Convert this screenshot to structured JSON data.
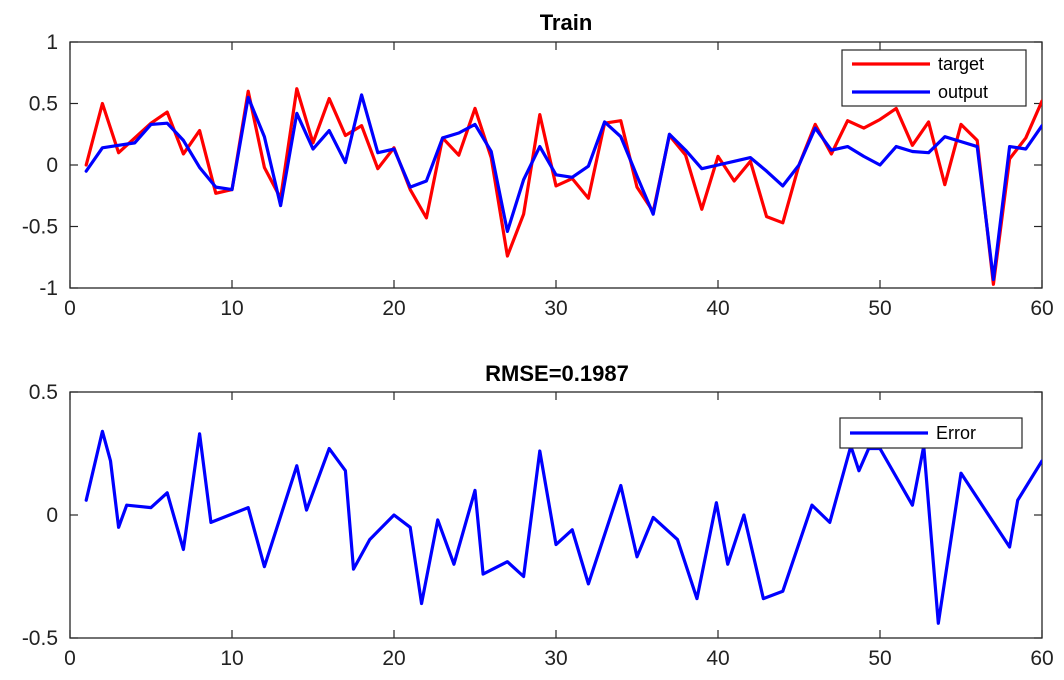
{
  "chart_data": [
    {
      "type": "line",
      "title": "Train",
      "xlabel": "",
      "ylabel": "",
      "xlim": [
        0,
        60
      ],
      "ylim": [
        -1,
        1
      ],
      "xticks": [
        0,
        10,
        20,
        30,
        40,
        50,
        60
      ],
      "yticks": [
        -1,
        -0.5,
        0,
        0.5,
        1
      ],
      "grid": false,
      "legend_position": "top-right",
      "series": [
        {
          "name": "target",
          "color": "#ff0000",
          "x": [
            1,
            2,
            3,
            4,
            5,
            6,
            7,
            8,
            9,
            10,
            11,
            12,
            13,
            14,
            15,
            16,
            17,
            18,
            19,
            20,
            21,
            22,
            23,
            24,
            25,
            26,
            27,
            28,
            29,
            30,
            31,
            32,
            33,
            34,
            35,
            36,
            37,
            38,
            39,
            40,
            41,
            42,
            43,
            44,
            45,
            46,
            47,
            48,
            49,
            50,
            51,
            52,
            53,
            54,
            55,
            56,
            57,
            58,
            59,
            60
          ],
          "values": [
            0.0,
            0.5,
            0.1,
            0.22,
            0.34,
            0.43,
            0.09,
            0.28,
            -0.23,
            -0.2,
            0.6,
            -0.02,
            -0.27,
            0.62,
            0.18,
            0.54,
            0.24,
            0.32,
            -0.03,
            0.14,
            -0.2,
            -0.43,
            0.22,
            0.08,
            0.46,
            0.06,
            -0.74,
            -0.4,
            0.41,
            -0.17,
            -0.11,
            -0.27,
            0.34,
            0.36,
            -0.18,
            -0.38,
            0.24,
            0.08,
            -0.36,
            0.07,
            -0.13,
            0.03,
            -0.42,
            -0.47,
            0.0,
            0.33,
            0.09,
            0.36,
            0.3,
            0.37,
            0.46,
            0.16,
            0.35,
            -0.16,
            0.33,
            0.2,
            -0.97,
            0.05,
            0.22,
            0.52
          ]
        },
        {
          "name": "output",
          "color": "#0000ff",
          "x": [
            1,
            2,
            3,
            4,
            5,
            6,
            7,
            8,
            9,
            10,
            11,
            12,
            13,
            14,
            15,
            16,
            17,
            18,
            19,
            20,
            21,
            22,
            23,
            24,
            25,
            26,
            27,
            28,
            29,
            30,
            31,
            32,
            33,
            34,
            35,
            36,
            37,
            38,
            39,
            40,
            41,
            42,
            43,
            44,
            45,
            46,
            47,
            48,
            49,
            50,
            51,
            52,
            53,
            54,
            55,
            56,
            57,
            58,
            59,
            60
          ],
          "values": [
            -0.05,
            0.14,
            0.16,
            0.18,
            0.33,
            0.34,
            0.2,
            -0.02,
            -0.18,
            -0.2,
            0.55,
            0.23,
            -0.33,
            0.42,
            0.13,
            0.28,
            0.02,
            0.57,
            0.1,
            0.13,
            -0.18,
            -0.13,
            0.22,
            0.26,
            0.33,
            0.11,
            -0.54,
            -0.12,
            0.15,
            -0.08,
            -0.1,
            -0.01,
            0.35,
            0.23,
            -0.09,
            -0.4,
            0.25,
            0.12,
            -0.03,
            0.0,
            0.03,
            0.06,
            -0.05,
            -0.17,
            0.0,
            0.3,
            0.12,
            0.15,
            0.07,
            0.0,
            0.15,
            0.11,
            0.1,
            0.23,
            0.19,
            0.15,
            -0.93,
            0.15,
            0.13,
            0.32
          ]
        }
      ]
    },
    {
      "type": "line",
      "title": "RMSE=0.1987",
      "xlabel": "",
      "ylabel": "",
      "xlim": [
        0,
        60
      ],
      "ylim": [
        -0.5,
        0.5
      ],
      "xticks": [
        0,
        10,
        20,
        30,
        40,
        50,
        60
      ],
      "yticks": [
        -0.5,
        0,
        0.5
      ],
      "grid": false,
      "legend_position": "top-right",
      "series": [
        {
          "name": "Error",
          "color": "#0000ff",
          "x": [
            1,
            2,
            2.5,
            3,
            3.5,
            5,
            6,
            7,
            8,
            8.7,
            11,
            12,
            14,
            14.6,
            16,
            17,
            17.5,
            18.5,
            20,
            21,
            21.7,
            22.7,
            23.7,
            25,
            25.5,
            27,
            28,
            29,
            30,
            31,
            32,
            34,
            35,
            36,
            37.5,
            38.7,
            39.9,
            40.6,
            41.6,
            42.8,
            44,
            45.8,
            46.9,
            48.2,
            48.7,
            49.3,
            50,
            52,
            52.7,
            53.6,
            55,
            58,
            58.5,
            60
          ],
          "values": [
            0.06,
            0.34,
            0.22,
            -0.05,
            0.04,
            0.03,
            0.09,
            -0.14,
            0.33,
            -0.03,
            0.03,
            -0.21,
            0.2,
            0.02,
            0.27,
            0.18,
            -0.22,
            -0.1,
            0.0,
            -0.05,
            -0.36,
            -0.02,
            -0.2,
            0.1,
            -0.24,
            -0.19,
            -0.25,
            0.26,
            -0.12,
            -0.06,
            -0.28,
            0.12,
            -0.17,
            -0.01,
            -0.1,
            -0.34,
            0.05,
            -0.2,
            0.0,
            -0.34,
            -0.31,
            0.04,
            -0.03,
            0.28,
            0.18,
            0.27,
            0.27,
            0.04,
            0.28,
            -0.44,
            0.17,
            -0.13,
            0.06,
            0.22
          ]
        }
      ]
    }
  ]
}
